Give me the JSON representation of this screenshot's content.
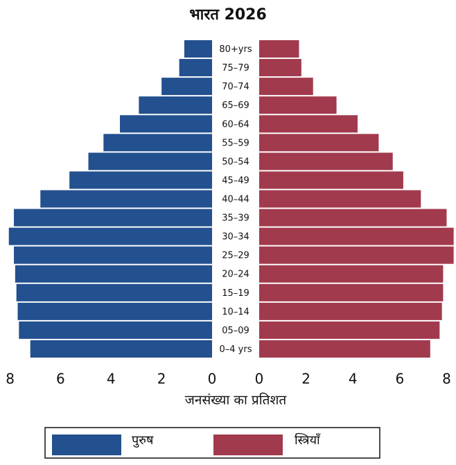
{
  "chart_data": {
    "type": "population-pyramid",
    "title": "भारत 2026",
    "categories": [
      "80+yrs",
      "75–79",
      "70–74",
      "65–69",
      "60–64",
      "55–59",
      "50–54",
      "45–49",
      "40–44",
      "35–39",
      "30–34",
      "25–29",
      "20–24",
      "15–19",
      "10–14",
      "05–09",
      "0–4 yrs"
    ],
    "series": [
      {
        "name": "पुरुष",
        "color": "#23508f",
        "values": [
          1.1,
          1.3,
          2.0,
          2.9,
          3.65,
          4.3,
          4.9,
          5.65,
          6.8,
          7.85,
          8.05,
          7.85,
          7.8,
          7.75,
          7.7,
          7.65,
          7.2
        ]
      },
      {
        "name": "स्त्रियाँ",
        "color": "#a23a4e",
        "values": [
          1.7,
          1.8,
          2.3,
          3.3,
          4.2,
          5.1,
          5.7,
          6.15,
          6.9,
          8.0,
          8.3,
          8.3,
          7.85,
          7.85,
          7.8,
          7.7,
          7.3
        ]
      }
    ],
    "xlabel": "जनसंख्या का प्रतिशत",
    "xlim": [
      0,
      8.4
    ],
    "xticks": [
      0,
      2,
      4,
      6,
      8
    ]
  }
}
